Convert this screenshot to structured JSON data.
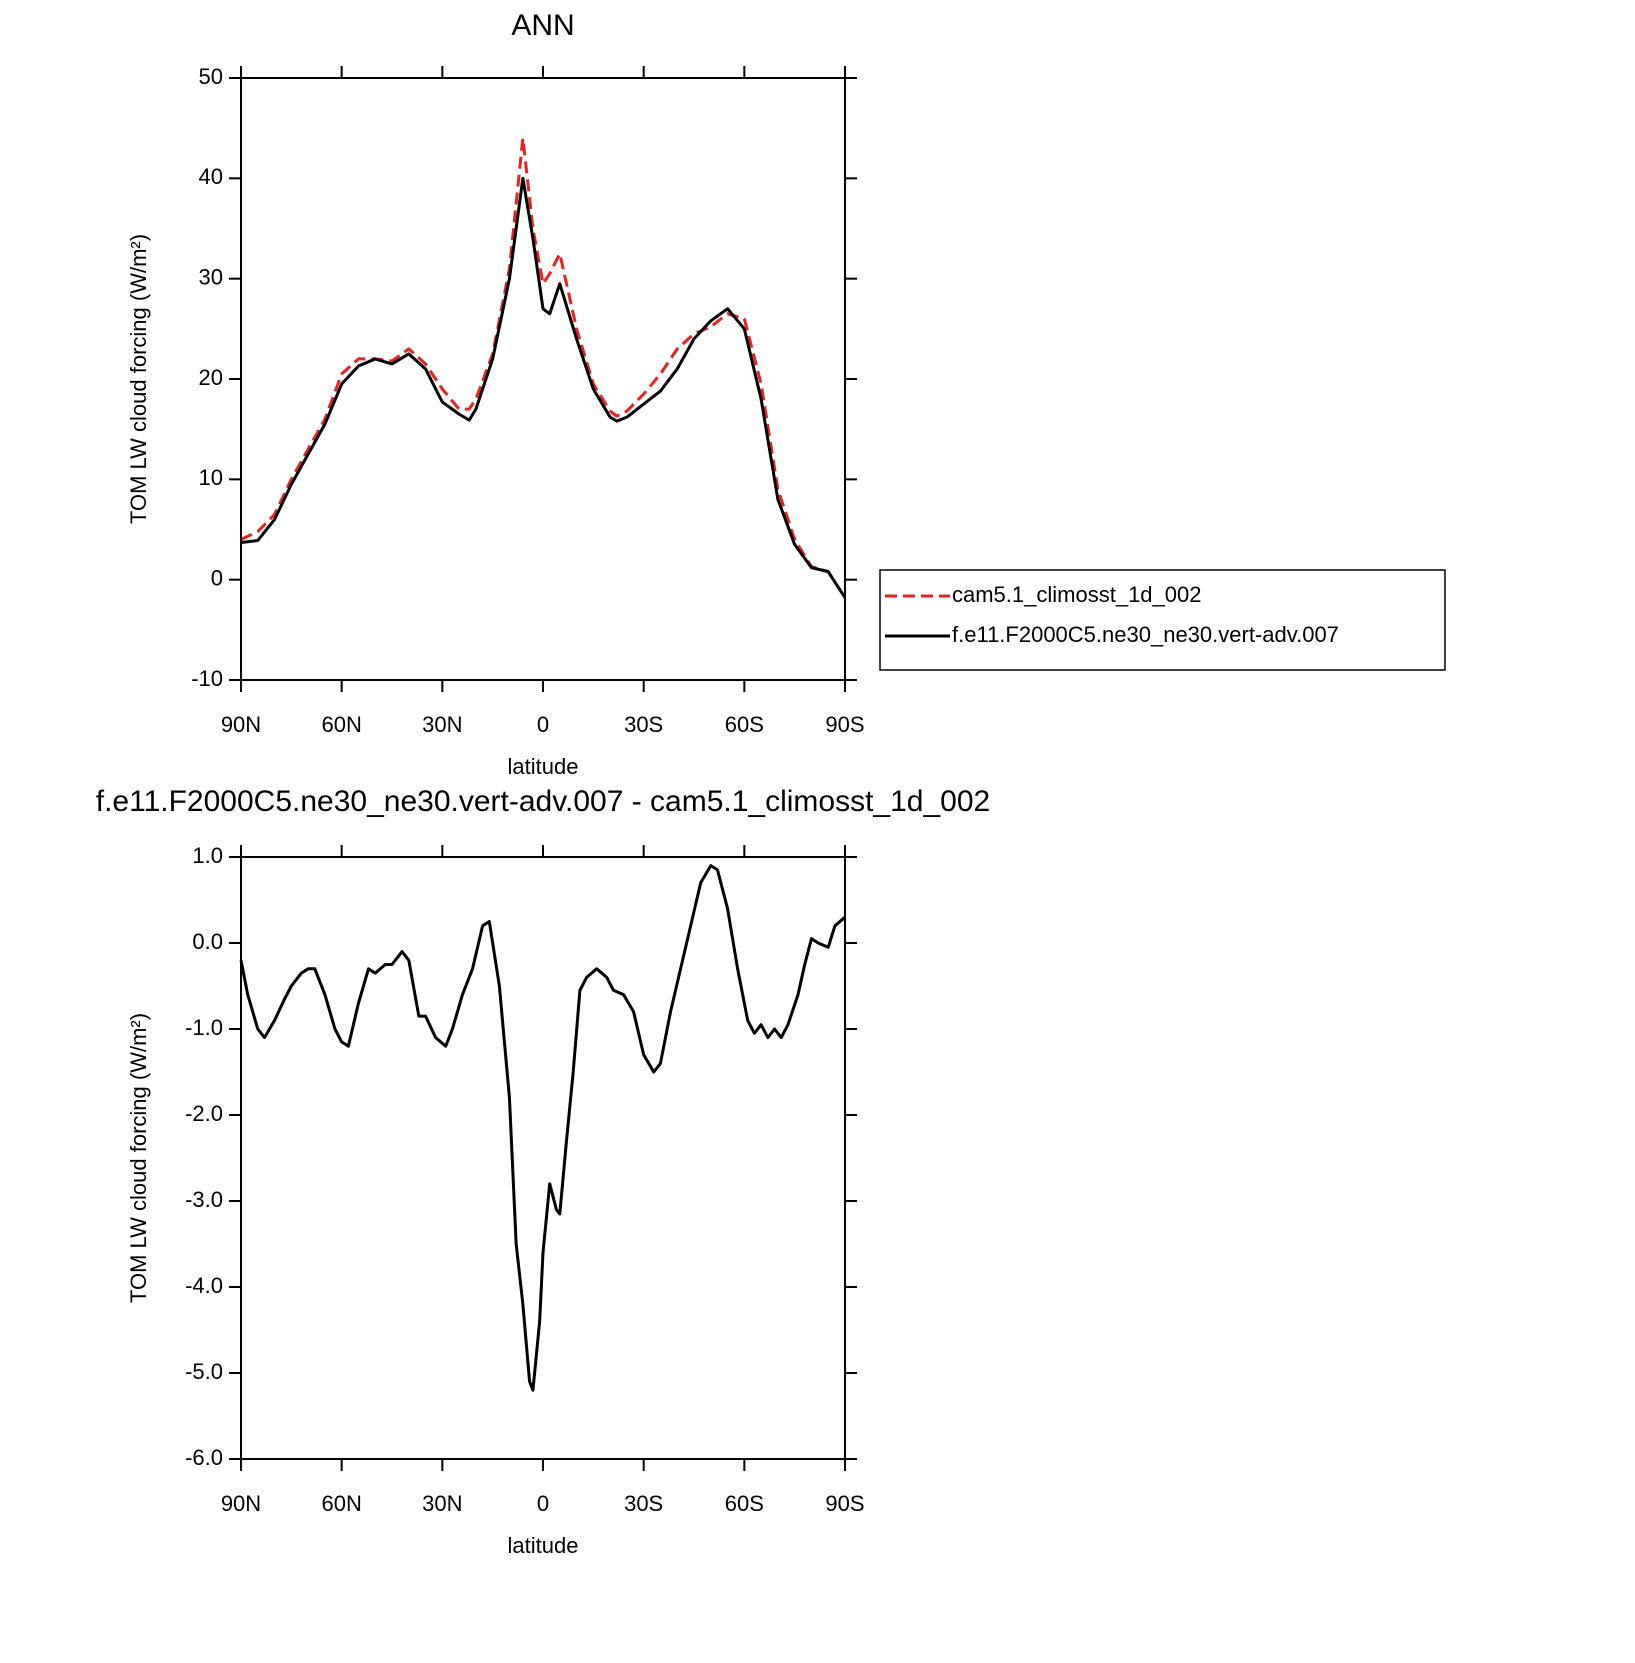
{
  "chart_data": [
    {
      "type": "line",
      "title": "ANN",
      "xlabel": "latitude",
      "ylabel": "TOM LW cloud forcing (W/m²)",
      "x": [
        90,
        85,
        80,
        75,
        70,
        65,
        60,
        55,
        50,
        45,
        40,
        35,
        30,
        25,
        22,
        20,
        15,
        10,
        6,
        3,
        0,
        -2,
        -5,
        -10,
        -15,
        -20,
        -22,
        -25,
        -30,
        -35,
        -40,
        -45,
        -50,
        -55,
        -60,
        -65,
        -70,
        -75,
        -80,
        -85,
        -90
      ],
      "series": [
        {
          "name": "cam5.1_climosst_1d_002",
          "color": "#e8221e",
          "style": "dashed",
          "values": [
            4,
            4.8,
            6.5,
            10,
            13,
            16,
            20.5,
            22,
            22,
            21.8,
            23,
            21.5,
            19,
            17,
            17,
            18,
            22.5,
            31,
            44,
            35,
            29.5,
            30.5,
            32.5,
            25,
            19.5,
            16.8,
            16.3,
            16.8,
            18.5,
            20.5,
            23,
            24.5,
            25.2,
            26.5,
            26,
            19.5,
            9,
            4,
            1.3,
            0.8,
            -1.8
          ]
        },
        {
          "name": "f.e11.F2000C5.ne30_ne30.vert-adv.007",
          "color": "#000000",
          "style": "solid",
          "values": [
            3.7,
            3.9,
            6,
            9.5,
            12.5,
            15.5,
            19.5,
            21.3,
            22,
            21.5,
            22.5,
            21,
            17.7,
            16.5,
            15.9,
            17,
            22,
            30,
            40,
            34,
            27,
            26.5,
            29.5,
            24,
            19,
            16.2,
            15.8,
            16.2,
            17.5,
            18.8,
            21,
            24,
            25.8,
            27,
            25,
            18,
            8,
            3.5,
            1.2,
            0.8,
            -1.8
          ]
        }
      ],
      "xlim": [
        90,
        -90
      ],
      "xticks": [
        {
          "value": 90,
          "label": "90N"
        },
        {
          "value": 60,
          "label": "60N"
        },
        {
          "value": 30,
          "label": "30N"
        },
        0,
        {
          "value": -30,
          "label": "30S"
        },
        {
          "value": -60,
          "label": "60S"
        },
        {
          "value": -90,
          "label": "90S"
        }
      ],
      "ylim": [
        -10,
        50
      ],
      "yticks": [
        -10,
        0,
        10,
        20,
        30,
        40,
        50
      ],
      "legend": "right"
    },
    {
      "type": "line",
      "title": "f.e11.F2000C5.ne30_ne30.vert-adv.007 - cam5.1_climosst_1d_002",
      "xlabel": "latitude",
      "ylabel": "TOM LW cloud forcing (W/m²)",
      "x": [
        90,
        88,
        85,
        83,
        80,
        77,
        75,
        72,
        70,
        68,
        65,
        62,
        60,
        58,
        55,
        52,
        50,
        47,
        45,
        42,
        40,
        37,
        35,
        32,
        29,
        27,
        24,
        21,
        18,
        16,
        13,
        10,
        8,
        6,
        4,
        3,
        1,
        0,
        -2,
        -4,
        -5,
        -7,
        -9,
        -11,
        -13,
        -16,
        -19,
        -21,
        -24,
        -27,
        -30,
        -33,
        -35,
        -38,
        -41,
        -44,
        -47,
        -50,
        -52,
        -55,
        -58,
        -61,
        -63,
        -65,
        -67,
        -69,
        -71,
        -73,
        -76,
        -78,
        -80,
        -82,
        -85,
        -87,
        -90
      ],
      "values": [
        -0.2,
        -0.6,
        -1,
        -1.1,
        -0.9,
        -0.65,
        -0.5,
        -0.35,
        -0.3,
        -0.3,
        -0.6,
        -1,
        -1.15,
        -1.2,
        -0.7,
        -0.3,
        -0.35,
        -0.25,
        -0.25,
        -0.1,
        -0.2,
        -0.85,
        -0.85,
        -1.1,
        -1.2,
        -1,
        -0.6,
        -0.3,
        0.2,
        0.25,
        -0.5,
        -1.8,
        -3.5,
        -4.2,
        -5.1,
        -5.2,
        -4.4,
        -3.6,
        -2.8,
        -3.1,
        -3.15,
        -2.3,
        -1.5,
        -0.55,
        -0.4,
        -0.3,
        -0.4,
        -0.55,
        -0.6,
        -0.8,
        -1.3,
        -1.5,
        -1.4,
        -0.8,
        -0.3,
        0.2,
        0.7,
        0.9,
        0.85,
        0.4,
        -0.3,
        -0.9,
        -1.05,
        -0.95,
        -1.1,
        -1,
        -1.1,
        -0.95,
        -0.6,
        -0.25,
        0.05,
        0,
        -0.05,
        0.2,
        0.3
      ],
      "color": "#000000",
      "xlim": [
        90,
        -90
      ],
      "xticks": [
        {
          "value": 90,
          "label": "90N"
        },
        {
          "value": 60,
          "label": "60N"
        },
        {
          "value": 30,
          "label": "30N"
        },
        0,
        {
          "value": -30,
          "label": "30S"
        },
        {
          "value": -60,
          "label": "60S"
        },
        {
          "value": -90,
          "label": "90S"
        }
      ],
      "ylim": [
        -6,
        1
      ],
      "yticks": [
        {
          "value": -6,
          "label": "-6.0"
        },
        {
          "value": -5,
          "label": "-5.0"
        },
        {
          "value": -4,
          "label": "-4.0"
        },
        {
          "value": -3,
          "label": "-3.0"
        },
        {
          "value": -2,
          "label": "-2.0"
        },
        {
          "value": -1,
          "label": "-1.0"
        },
        {
          "value": 0,
          "label": "0.0"
        },
        {
          "value": 1,
          "label": "1.0"
        }
      ]
    }
  ]
}
